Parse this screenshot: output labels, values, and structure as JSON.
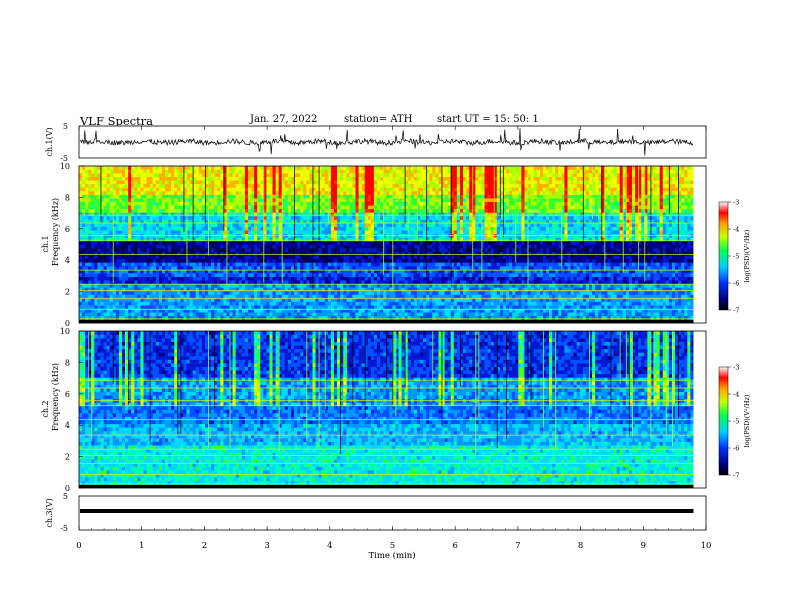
{
  "header": {
    "title": "VLF  Spectra",
    "date": "Jan. 27, 2022",
    "station": "station= ATH",
    "start": "start  UT  =    15: 50: 1"
  },
  "panels": {
    "ch1_wave": {
      "ylabel": "ch.1(V)",
      "y_ticks": [
        "5",
        "-5"
      ]
    },
    "ch1_spec": {
      "channel": "ch.1",
      "ylabel": "Frequency  (kHz)",
      "y_ticks": [
        "0",
        "2",
        "4",
        "6",
        "8",
        "10"
      ]
    },
    "ch2_spec": {
      "channel": "ch.2",
      "ylabel": "Frequency  (kHz)",
      "y_ticks": [
        "0",
        "2",
        "4",
        "6",
        "8",
        "10"
      ]
    },
    "ch3_wave": {
      "ylabel": "ch.3(V)",
      "y_ticks": [
        "5",
        "-5"
      ]
    }
  },
  "colorbar": {
    "label": "log(PSD)(V²/Hz)",
    "ticks": [
      "-3",
      "-4",
      "-5",
      "-6",
      "-7"
    ]
  },
  "x_axis": {
    "label": "Time  (min)",
    "ticks": [
      "0",
      "1",
      "2",
      "3",
      "4",
      "5",
      "6",
      "7",
      "8",
      "9",
      "10"
    ]
  },
  "chart_data": {
    "type": "heatmap",
    "title": "VLF  Spectra",
    "xlabel": "Time  (min)",
    "ylabel": "Frequency  (kHz)",
    "xlim": [
      0,
      10
    ],
    "ylim": [
      0,
      10
    ],
    "data_extent_min": 9.8,
    "colorbar_range": [
      -7,
      -3
    ],
    "colorbar_label": "log(PSD)(V²/Hz)",
    "waveform_ylim": [
      -5,
      5
    ],
    "panels": [
      "ch.1(V)",
      "ch.1",
      "ch.2",
      "ch.3(V)"
    ],
    "grid": false
  }
}
